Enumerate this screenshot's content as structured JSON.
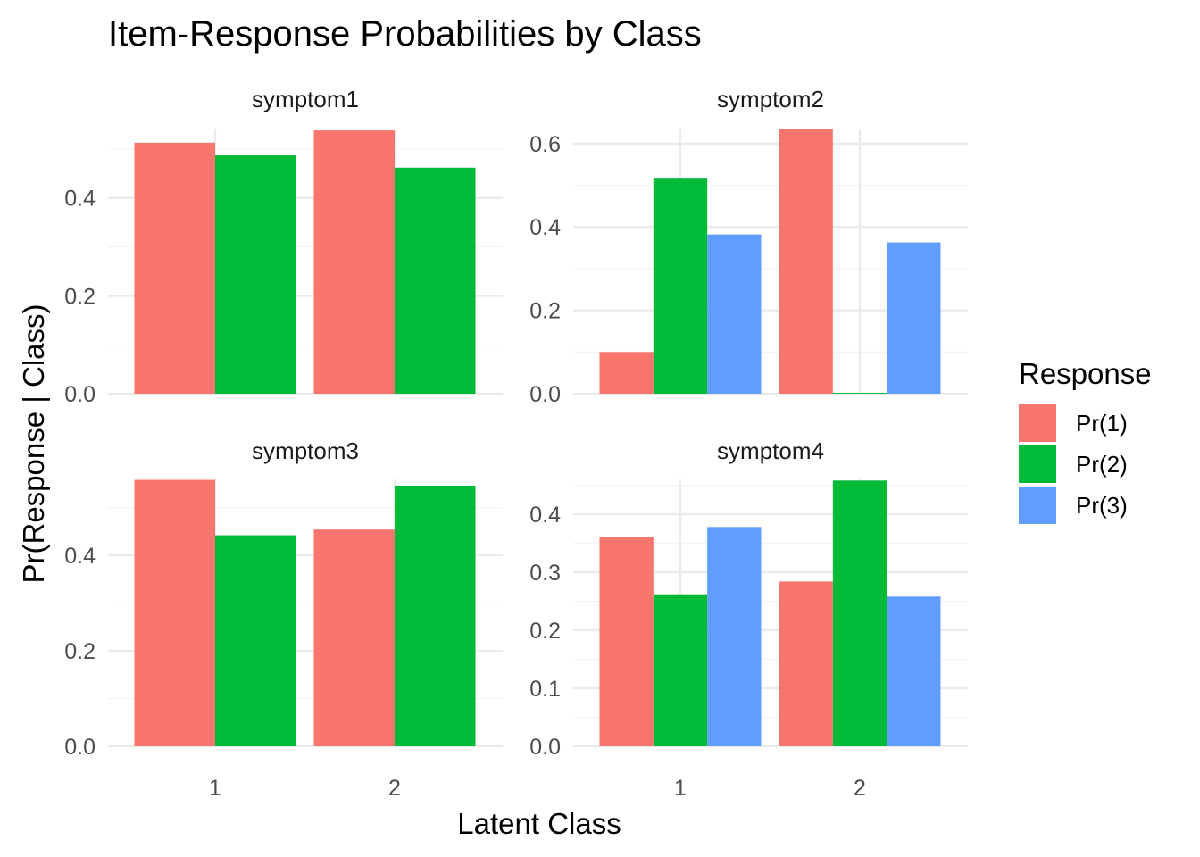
{
  "chart_data": {
    "type": "bar",
    "title": "Item-Response Probabilities by Class",
    "xlabel": "Latent Class",
    "ylabel": "Pr(Response | Class)",
    "categories": [
      "1",
      "2"
    ],
    "legend": {
      "title": "Response",
      "position": "right",
      "entries": [
        {
          "name": "Pr(1)",
          "color": "#F8766D"
        },
        {
          "name": "Pr(2)",
          "color": "#00BA38"
        },
        {
          "name": "Pr(3)",
          "color": "#619CFF"
        }
      ]
    },
    "grid": true,
    "panels": [
      {
        "name": "symptom1",
        "ylim": [
          0,
          0.54
        ],
        "yticks": [
          "0.0",
          "0.2",
          "0.4"
        ],
        "yticks_values": [
          0,
          0.2,
          0.4
        ],
        "show_xticks": false,
        "series": [
          {
            "name": "Pr(1)",
            "values": [
              0.513,
              0.538
            ]
          },
          {
            "name": "Pr(2)",
            "values": [
              0.487,
              0.462
            ]
          }
        ]
      },
      {
        "name": "symptom2",
        "ylim": [
          0,
          0.634
        ],
        "yticks": [
          "0.0",
          "0.2",
          "0.4",
          "0.6"
        ],
        "yticks_values": [
          0,
          0.2,
          0.4,
          0.6
        ],
        "show_xticks": false,
        "series": [
          {
            "name": "Pr(1)",
            "values": [
              0.1,
              0.635
            ]
          },
          {
            "name": "Pr(2)",
            "values": [
              0.518,
              0.002
            ]
          },
          {
            "name": "Pr(3)",
            "values": [
              0.382,
              0.363
            ]
          }
        ]
      },
      {
        "name": "symptom3",
        "ylim": [
          0,
          0.559
        ],
        "yticks": [
          "0.0",
          "0.2",
          "0.4"
        ],
        "yticks_values": [
          0,
          0.2,
          0.4
        ],
        "show_xticks": true,
        "series": [
          {
            "name": "Pr(1)",
            "values": [
              0.558,
              0.454
            ]
          },
          {
            "name": "Pr(2)",
            "values": [
              0.442,
              0.546
            ]
          }
        ]
      },
      {
        "name": "symptom4",
        "ylim": [
          0,
          0.46
        ],
        "yticks": [
          "0.0",
          "0.1",
          "0.2",
          "0.3",
          "0.4"
        ],
        "yticks_values": [
          0,
          0.1,
          0.2,
          0.3,
          0.4
        ],
        "show_xticks": true,
        "series": [
          {
            "name": "Pr(1)",
            "values": [
              0.36,
              0.284
            ]
          },
          {
            "name": "Pr(2)",
            "values": [
              0.262,
              0.458
            ]
          },
          {
            "name": "Pr(3)",
            "values": [
              0.378,
              0.258
            ]
          }
        ]
      }
    ]
  }
}
